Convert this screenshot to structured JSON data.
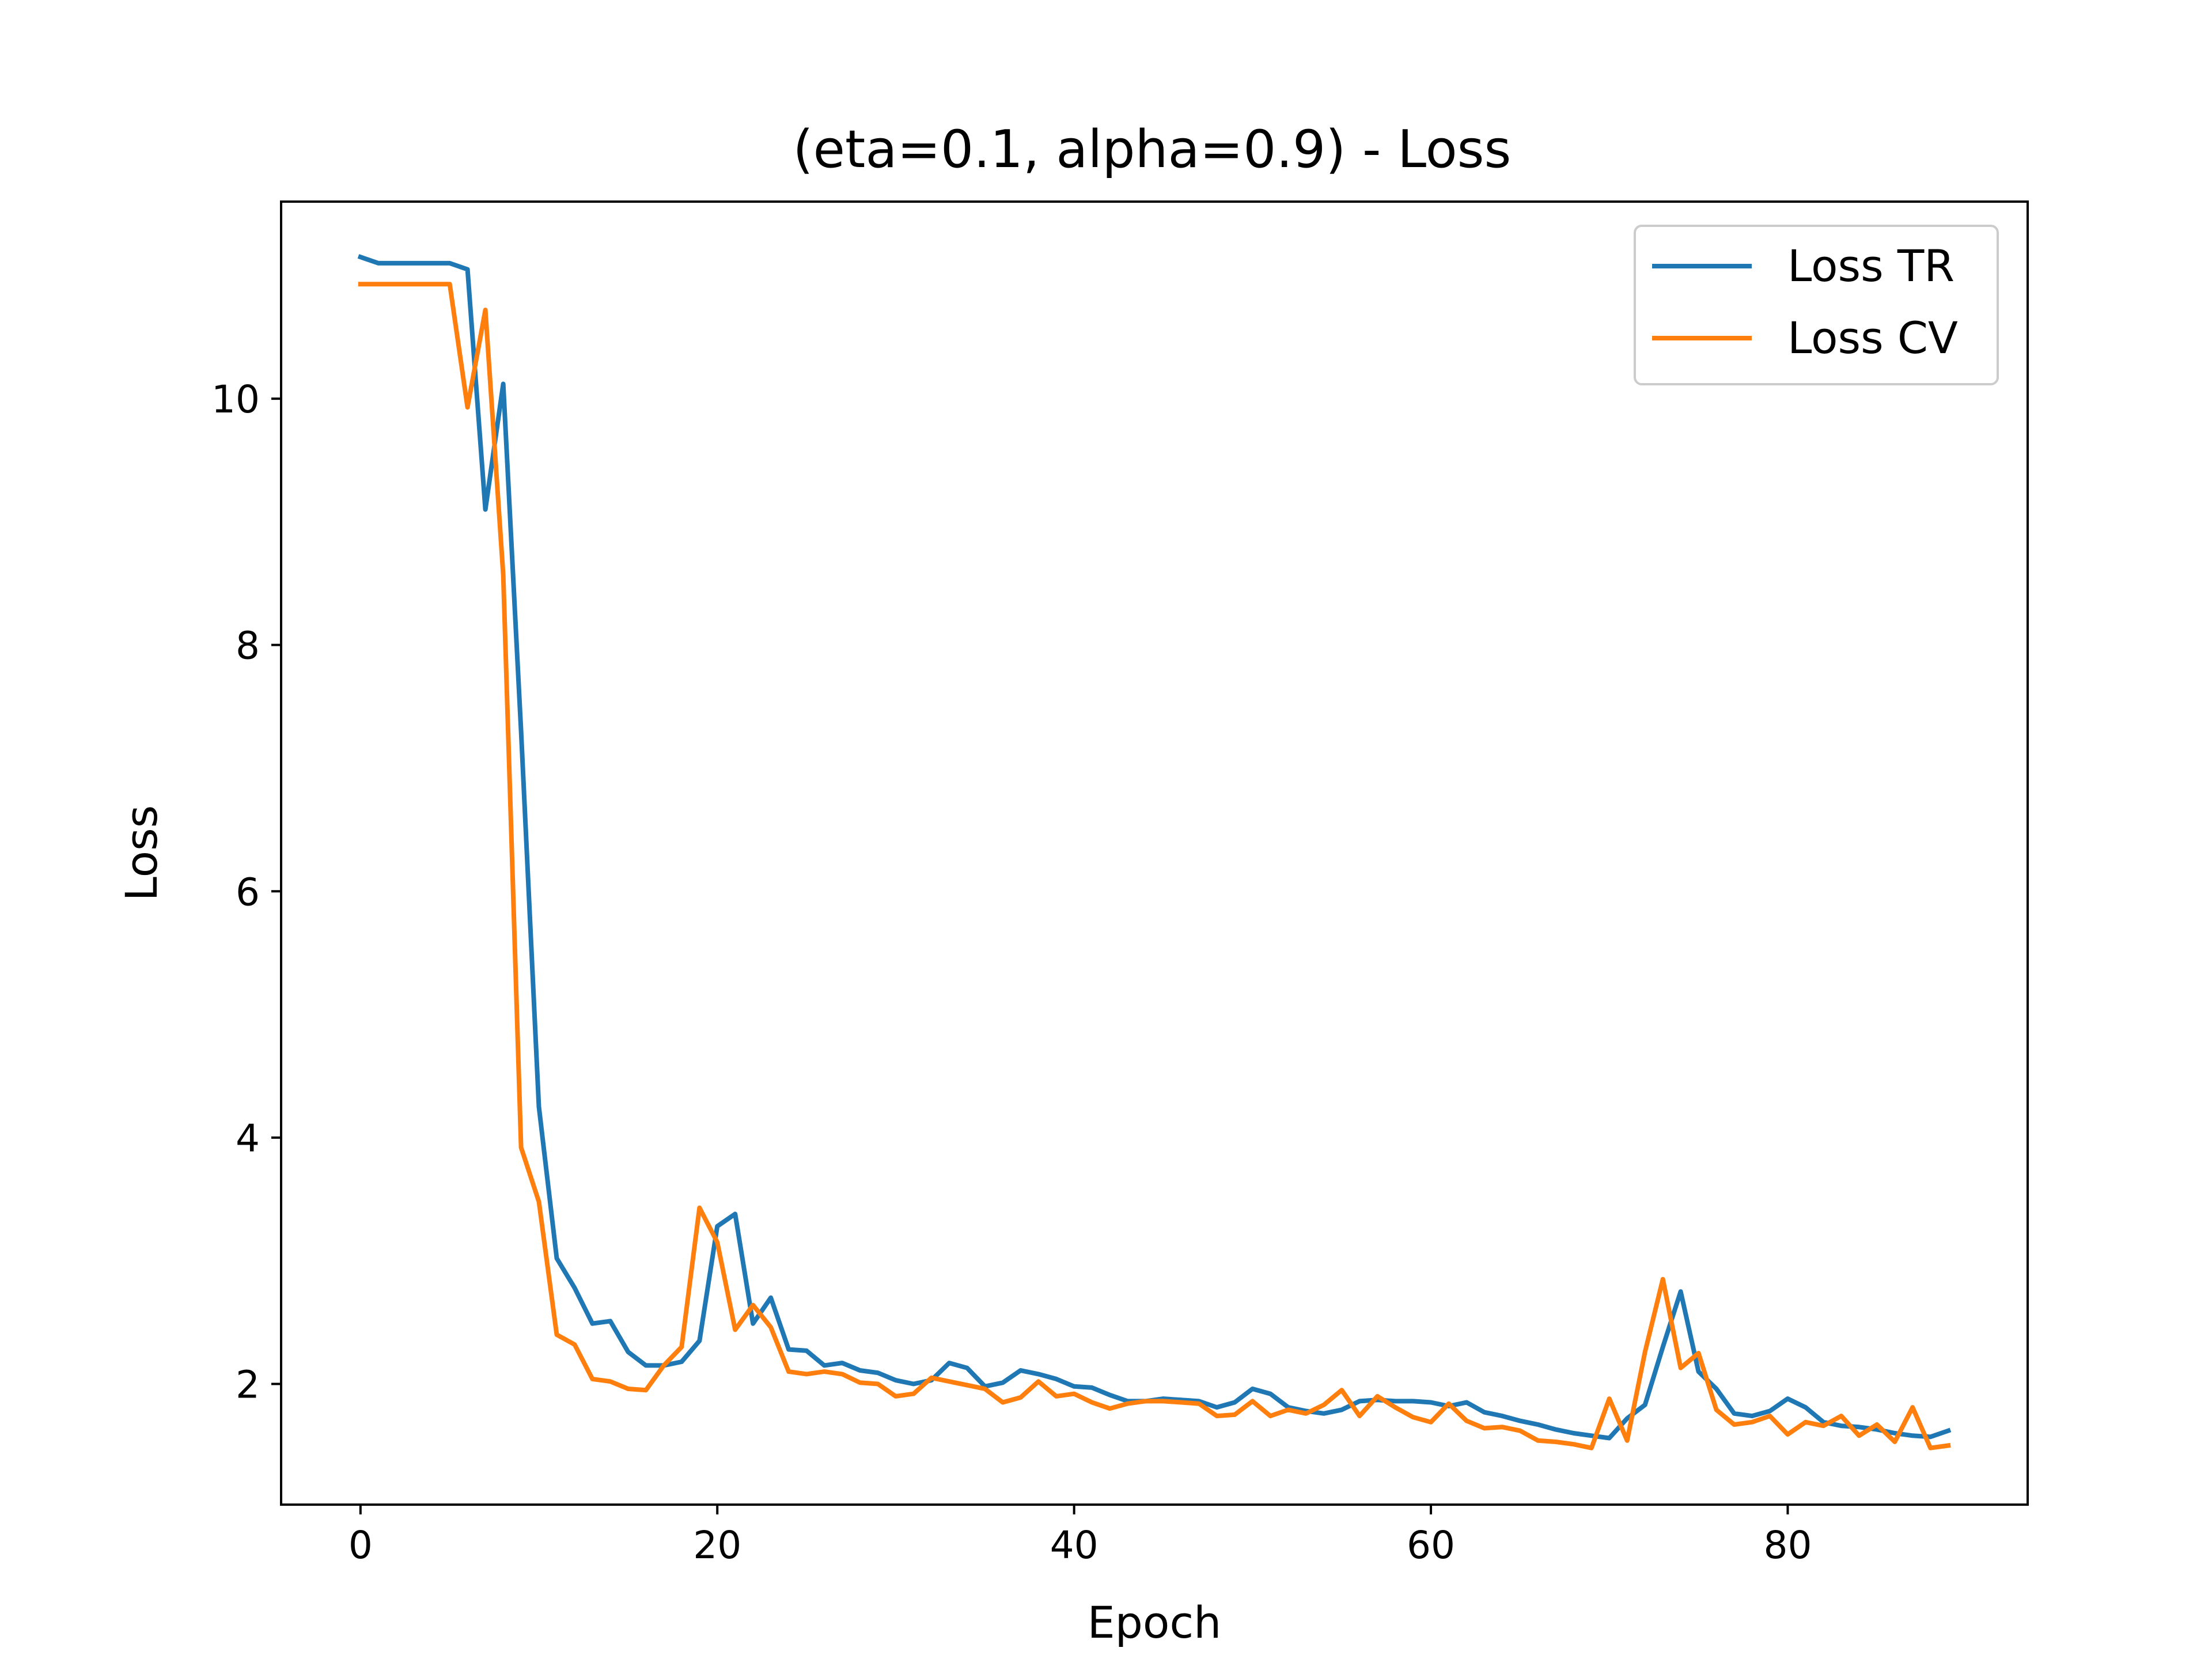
{
  "chart_data": {
    "type": "line",
    "title": "(eta=0.1, alpha=0.9) - Loss",
    "xlabel": "Epoch",
    "ylabel": "Loss",
    "xlim": [
      -4.45,
      93.45
    ],
    "ylim": [
      1.02,
      11.6
    ],
    "xticks": [
      0,
      20,
      40,
      60,
      80
    ],
    "yticks": [
      2,
      4,
      6,
      8,
      10
    ],
    "grid": false,
    "legend_position": "top-right",
    "series": [
      {
        "name": "Loss TR",
        "color": "#1f77b4",
        "values": [
          11.15,
          11.1,
          11.1,
          11.1,
          11.1,
          11.1,
          11.05,
          9.1,
          10.12,
          7.3,
          4.25,
          3.02,
          2.78,
          2.49,
          2.51,
          2.26,
          2.15,
          2.15,
          2.18,
          2.35,
          3.28,
          3.38,
          2.49,
          2.7,
          2.28,
          2.27,
          2.15,
          2.17,
          2.11,
          2.09,
          2.03,
          2.0,
          2.03,
          2.17,
          2.13,
          1.98,
          2.01,
          2.11,
          2.08,
          2.04,
          1.98,
          1.97,
          1.91,
          1.86,
          1.86,
          1.88,
          1.87,
          1.86,
          1.81,
          1.85,
          1.96,
          1.92,
          1.81,
          1.78,
          1.76,
          1.79,
          1.86,
          1.87,
          1.86,
          1.86,
          1.85,
          1.82,
          1.85,
          1.77,
          1.74,
          1.7,
          1.67,
          1.63,
          1.6,
          1.58,
          1.56,
          1.72,
          1.83,
          2.3,
          2.75,
          2.1,
          1.96,
          1.76,
          1.74,
          1.78,
          1.88,
          1.81,
          1.69,
          1.66,
          1.65,
          1.63,
          1.6,
          1.58,
          1.57,
          1.62
        ]
      },
      {
        "name": "Loss CV",
        "color": "#ff7f0e",
        "values": [
          10.93,
          10.93,
          10.93,
          10.93,
          10.93,
          10.93,
          9.93,
          10.72,
          8.57,
          3.92,
          3.48,
          2.4,
          2.32,
          2.04,
          2.02,
          1.96,
          1.95,
          2.15,
          2.3,
          3.43,
          3.15,
          2.44,
          2.64,
          2.46,
          2.1,
          2.08,
          2.1,
          2.08,
          2.01,
          2.0,
          1.9,
          1.92,
          2.05,
          2.02,
          1.99,
          1.96,
          1.85,
          1.89,
          2.02,
          1.9,
          1.92,
          1.85,
          1.8,
          1.84,
          1.86,
          1.86,
          1.85,
          1.84,
          1.74,
          1.75,
          1.86,
          1.74,
          1.79,
          1.76,
          1.83,
          1.95,
          1.74,
          1.9,
          1.81,
          1.73,
          1.69,
          1.84,
          1.7,
          1.64,
          1.65,
          1.62,
          1.54,
          1.53,
          1.51,
          1.48,
          1.88,
          1.54,
          2.26,
          2.85,
          2.13,
          2.25,
          1.79,
          1.67,
          1.69,
          1.74,
          1.59,
          1.69,
          1.66,
          1.74,
          1.58,
          1.67,
          1.53,
          1.81,
          1.48,
          1.5
        ]
      }
    ]
  }
}
